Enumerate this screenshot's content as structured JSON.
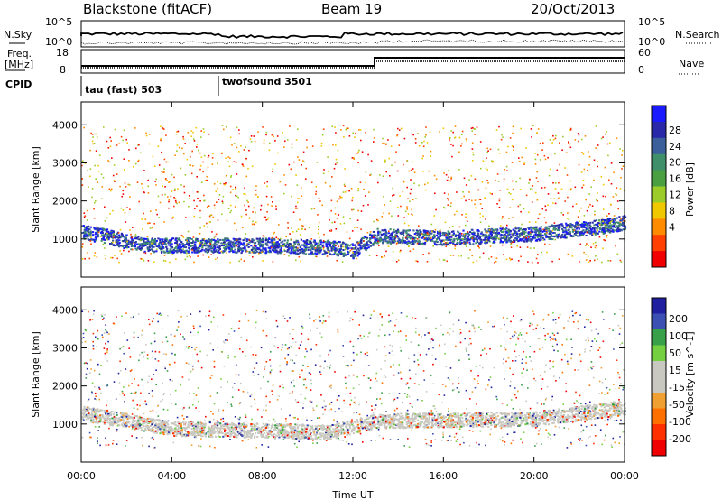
{
  "header": {
    "site": "Blackstone (fitACF)",
    "beam": "Beam 19",
    "date": "20/Oct/2013"
  },
  "top_labels": {
    "nsky": "N.Sky",
    "nsearch": "N.Search",
    "freq_line1": "Freq.",
    "freq_line2": "[MHz]",
    "nave": "Nave",
    "cpid": "CPID",
    "noise_ticks": [
      "10^5",
      "10^0"
    ],
    "freq_ticks": [
      "18",
      "8"
    ],
    "nave_ticks": [
      "60",
      "0"
    ]
  },
  "cpid_segments": [
    {
      "label": "tau (fast) 503",
      "start_hour": 0
    },
    {
      "label": "twofsound 3501",
      "start_hour": 6
    }
  ],
  "chart_data": [
    {
      "type": "heatmap",
      "title": "",
      "xlabel": "Time UT",
      "ylabel": "Slant Range [km]",
      "x_range_hours": [
        0,
        24
      ],
      "x_ticks": [
        "00:00",
        "04:00",
        "08:00",
        "12:00",
        "16:00",
        "20:00",
        "00:00"
      ],
      "ylim": [
        0,
        4600
      ],
      "y_ticks": [
        1000,
        2000,
        3000,
        4000
      ],
      "colorbar": {
        "label": "Power [dB]",
        "ticks": [
          4,
          8,
          12,
          16,
          20,
          24,
          28
        ],
        "colors": [
          "#1a1aff",
          "#2828a8",
          "#3a5f9a",
          "#3f8f6a",
          "#4aa040",
          "#9ccc2a",
          "#f0c800",
          "#ff8c00",
          "#ff4000",
          "#f00000"
        ]
      },
      "features": [
        {
          "name": "dominant band",
          "x_hours": [
            0,
            1,
            2,
            3,
            5,
            8,
            11,
            12,
            13,
            16,
            20,
            23,
            24
          ],
          "slant_range_km": [
            1200,
            1100,
            950,
            850,
            850,
            850,
            800,
            700,
            1100,
            1050,
            1150,
            1350,
            1450
          ]
        },
        {
          "name": "near range band",
          "x_hours": [
            1,
            12
          ],
          "slant_range_km": [
            700,
            700
          ]
        }
      ]
    },
    {
      "type": "heatmap",
      "title": "",
      "xlabel": "Time UT",
      "ylabel": "Slant Range [km]",
      "x_range_hours": [
        0,
        24
      ],
      "x_ticks": [
        "00:00",
        "04:00",
        "08:00",
        "12:00",
        "16:00",
        "20:00",
        "00:00"
      ],
      "ylim": [
        0,
        4600
      ],
      "y_ticks": [
        1000,
        2000,
        3000,
        4000
      ],
      "colorbar": {
        "label": "Velocity [m s^-1]",
        "tick_labels": [
          "200",
          "100",
          "50",
          "15",
          "-15",
          "-50",
          "-100",
          "-200"
        ],
        "colors": [
          "#1f1fa0",
          "#3c50b4",
          "#38a048",
          "#74d040",
          "#c8c8c0",
          "#c8c8c0",
          "#f0a030",
          "#ff7000",
          "#ff3000",
          "#f00000"
        ]
      },
      "features": [
        {
          "name": "ground scatter band (~0 m/s)",
          "x_hours": [
            0,
            4,
            11,
            13,
            20,
            24
          ],
          "slant_range_km": [
            1300,
            900,
            800,
            1100,
            1150,
            1450
          ]
        }
      ]
    }
  ]
}
